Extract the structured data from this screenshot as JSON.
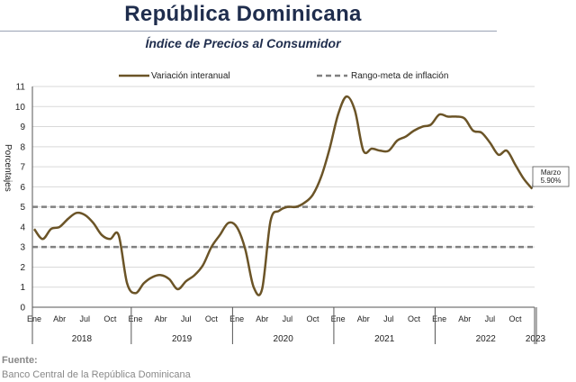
{
  "title": "República Dominicana",
  "subtitle": "Índice de Precios al Consumidor",
  "source": {
    "title": "Fuente:",
    "body": "Banco Central de la República Dominicana"
  },
  "chart_data": {
    "type": "line",
    "title": "Índice de Precios al Consumidor",
    "ylabel": "Porcentajes",
    "ylim": [
      0,
      11
    ],
    "yticks": [
      0,
      1,
      2,
      3,
      4,
      5,
      6,
      7,
      8,
      9,
      10,
      11
    ],
    "month_tick_labels": [
      "Ene",
      "Abr",
      "Jul",
      "Oct"
    ],
    "years": [
      "2018",
      "2019",
      "2020",
      "2021",
      "2022",
      "2023"
    ],
    "grid": true,
    "legend_position": "top",
    "series": [
      {
        "name": "Variación interanual",
        "color": "#6b5427",
        "start": "2018-01",
        "values": [
          3.9,
          3.4,
          3.9,
          4.0,
          4.4,
          4.7,
          4.6,
          4.2,
          3.6,
          3.4,
          3.6,
          1.2,
          0.7,
          1.2,
          1.5,
          1.6,
          1.4,
          0.9,
          1.3,
          1.6,
          2.1,
          3.0,
          3.6,
          4.2,
          4.0,
          2.9,
          1.0,
          0.9,
          4.3,
          4.8,
          5.0,
          5.0,
          5.2,
          5.6,
          6.5,
          7.9,
          9.6,
          10.5,
          9.8,
          7.8,
          7.9,
          7.8,
          7.8,
          8.3,
          8.5,
          8.8,
          9.0,
          9.1,
          9.6,
          9.5,
          9.5,
          9.4,
          8.8,
          8.7,
          8.2,
          7.6,
          7.8,
          7.1,
          6.4,
          5.9
        ]
      },
      {
        "name": "Rango-meta de inflación",
        "color": "#808080",
        "values": [
          3,
          5
        ]
      }
    ],
    "annotation": {
      "label": "Marzo",
      "value": "5.90%"
    }
  }
}
